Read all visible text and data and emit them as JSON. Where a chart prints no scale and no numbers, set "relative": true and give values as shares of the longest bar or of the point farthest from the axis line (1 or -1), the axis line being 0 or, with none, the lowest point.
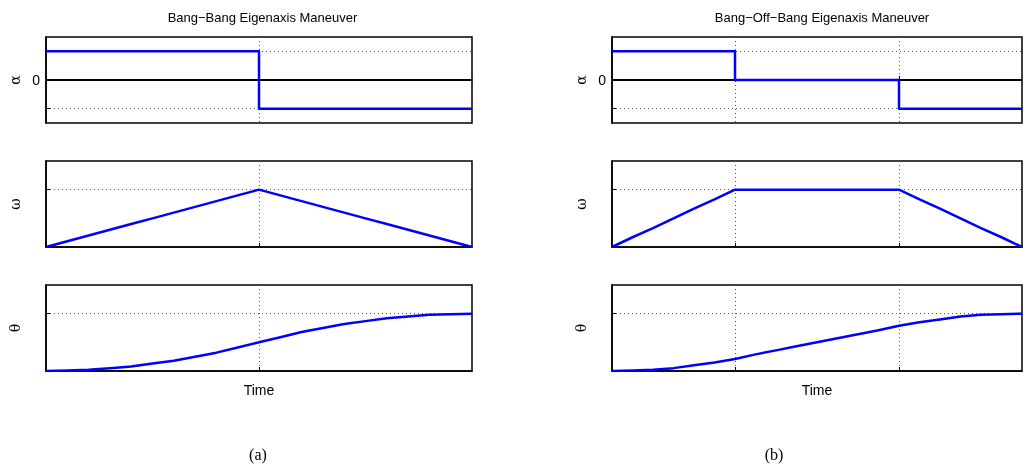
{
  "chart_data": [
    {
      "type": "step",
      "title": "Bang−Bang Eigenaxis Maneuver",
      "ylabel": "α",
      "relative": true,
      "categories": [
        null,
        null,
        null,
        null,
        null,
        null,
        null,
        null,
        null,
        null,
        null,
        null,
        null,
        null,
        null,
        null,
        null,
        null,
        null,
        null,
        null
      ],
      "values": [
        1,
        1,
        1,
        1,
        1,
        1,
        1,
        1,
        1,
        1,
        -1,
        -1,
        -1,
        -1,
        -1,
        -1,
        -1,
        -1,
        -1,
        -1,
        -1
      ],
      "color": "#0000ff",
      "tick_labels": false,
      "grid": true,
      "ref_lines": [
        {
          "axis": "y",
          "value": 0,
          "label": "0",
          "color": "#000000"
        }
      ]
    },
    {
      "type": "step",
      "title": "Bang−Off−Bang Eigenaxis Maneuver",
      "ylabel": "α",
      "relative": true,
      "categories": [
        null,
        null,
        null,
        null,
        null,
        null,
        null,
        null,
        null,
        null,
        null,
        null,
        null,
        null,
        null,
        null,
        null,
        null,
        null,
        null,
        null
      ],
      "values": [
        1,
        1,
        1,
        1,
        1,
        1,
        0,
        0,
        0,
        0,
        0,
        0,
        0,
        0,
        -1,
        -1,
        -1,
        -1,
        -1,
        -1,
        -1
      ],
      "color": "#0000ff",
      "tick_labels": false,
      "grid": true,
      "ref_lines": [
        {
          "axis": "y",
          "value": 0,
          "label": "0",
          "color": "#000000"
        }
      ]
    },
    {
      "type": "line",
      "ylabel": "ω",
      "relative": true,
      "categories": [
        null,
        null,
        null,
        null,
        null,
        null,
        null,
        null,
        null,
        null,
        null,
        null,
        null,
        null,
        null,
        null,
        null,
        null,
        null,
        null,
        null
      ],
      "values": [
        0,
        0.1,
        0.2,
        0.3,
        0.4,
        0.5,
        0.6,
        0.7,
        0.8,
        0.9,
        1,
        0.9,
        0.8,
        0.7,
        0.6,
        0.5,
        0.4,
        0.3,
        0.2,
        0.1,
        0
      ],
      "color": "#0000ff",
      "tick_labels": false,
      "grid": true
    },
    {
      "type": "line",
      "ylabel": "ω",
      "relative": true,
      "categories": [
        null,
        null,
        null,
        null,
        null,
        null,
        null,
        null,
        null,
        null,
        null,
        null,
        null,
        null,
        null,
        null,
        null,
        null,
        null,
        null,
        null
      ],
      "values": [
        0,
        0.17,
        0.33,
        0.5,
        0.67,
        0.83,
        1,
        1,
        1,
        1,
        1,
        1,
        1,
        1,
        1,
        0.83,
        0.67,
        0.5,
        0.33,
        0.17,
        0
      ],
      "color": "#0000ff",
      "tick_labels": false,
      "grid": true
    },
    {
      "type": "line",
      "ylabel": "θ",
      "xlabel": "Time",
      "annotations": [
        "(a)"
      ],
      "relative": true,
      "categories": [
        null,
        null,
        null,
        null,
        null,
        null,
        null,
        null,
        null,
        null,
        null,
        null,
        null,
        null,
        null,
        null,
        null,
        null,
        null,
        null,
        null
      ],
      "values": [
        0,
        0.01,
        0.02,
        0.05,
        0.08,
        0.13,
        0.18,
        0.25,
        0.32,
        0.41,
        0.5,
        0.59,
        0.68,
        0.75,
        0.82,
        0.87,
        0.92,
        0.95,
        0.98,
        0.99,
        1
      ],
      "color": "#0000ff",
      "tick_labels": false,
      "grid": true
    },
    {
      "type": "line",
      "ylabel": "θ",
      "xlabel": "Time",
      "annotations": [
        "(b)"
      ],
      "relative": true,
      "categories": [
        null,
        null,
        null,
        null,
        null,
        null,
        null,
        null,
        null,
        null,
        null,
        null,
        null,
        null,
        null,
        null,
        null,
        null,
        null,
        null,
        null
      ],
      "values": [
        0,
        0.01,
        0.02,
        0.05,
        0.1,
        0.15,
        0.21,
        0.29,
        0.36,
        0.43,
        0.5,
        0.57,
        0.64,
        0.71,
        0.79,
        0.85,
        0.9,
        0.95,
        0.98,
        0.99,
        1
      ],
      "color": "#0000ff",
      "tick_labels": false,
      "grid": true
    }
  ]
}
